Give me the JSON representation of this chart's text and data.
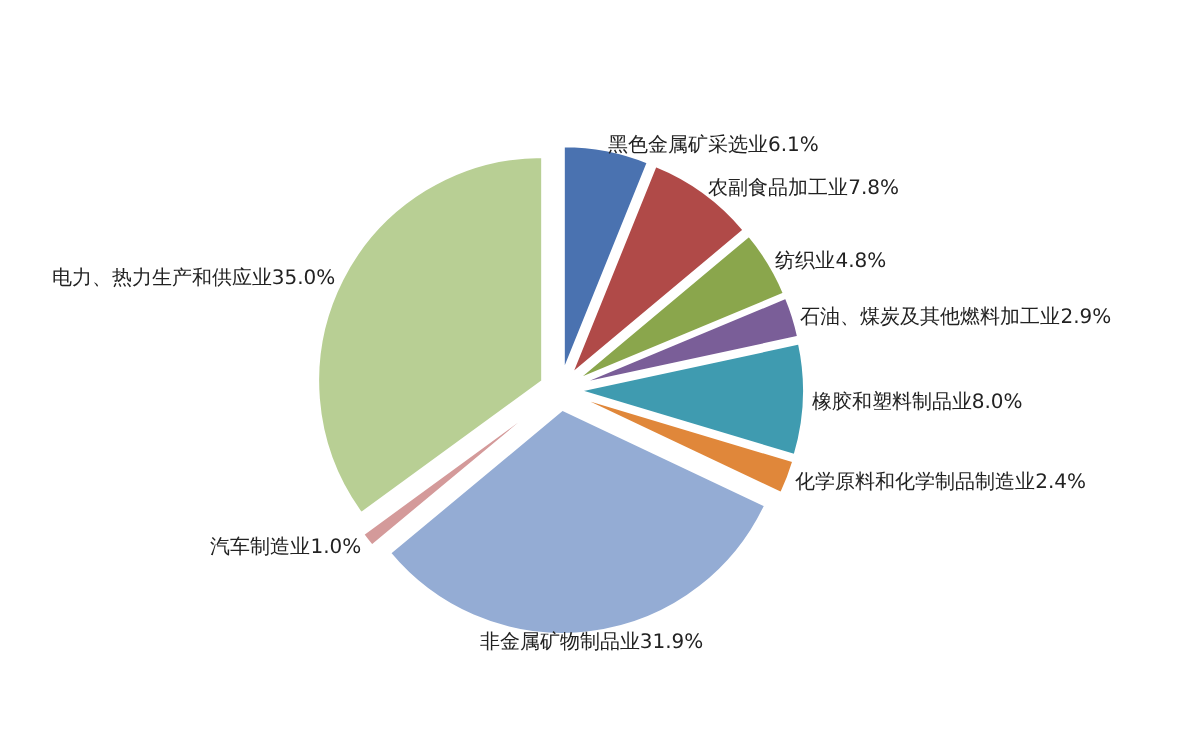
{
  "chart_data": {
    "type": "pie",
    "categories": [
      "黑色金属矿采选业",
      "农副食品加工业",
      "纺织业",
      "石油、煤炭及其他燃料加工业",
      "橡胶和塑料制品业",
      "化学原料和化学制品制造业",
      "非金属矿物制品业",
      "汽车制造业",
      "电力、热力生产和供应业"
    ],
    "values": [
      6.1,
      7.8,
      4.8,
      2.9,
      8.0,
      2.4,
      31.9,
      1.0,
      35.0
    ],
    "value_labels": [
      "6.1%",
      "7.8%",
      "4.8%",
      "2.9%",
      "8.0%",
      "2.4%",
      "31.9%",
      "1.0%",
      "35.0%"
    ],
    "colors": [
      "#4a72b0",
      "#b04a48",
      "#8aa64c",
      "#7a5e98",
      "#3f9bb0",
      "#e0873a",
      "#94acd4",
      "#d49a9a",
      "#b8cf94"
    ]
  }
}
